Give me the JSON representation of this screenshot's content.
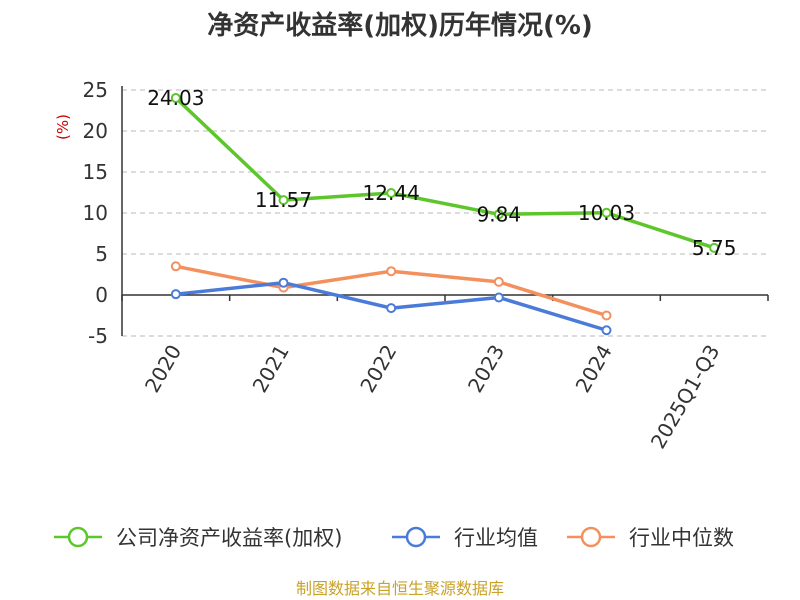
{
  "chart_data": {
    "type": "line",
    "title": "净资产收益率(加权)历年情况(%)",
    "ylabel": "(%)",
    "categories": [
      "2020",
      "2021",
      "2022",
      "2023",
      "2024",
      "2025Q1-Q3"
    ],
    "ylim": [
      -5,
      25
    ],
    "yticks": [
      -5,
      0,
      5,
      10,
      15,
      20,
      25
    ],
    "grid": true,
    "legend_position": "bottom",
    "series": [
      {
        "name": "公司净资产收益率(加权)",
        "color": "#5cc62a",
        "values": [
          24.03,
          11.57,
          12.44,
          9.84,
          10.03,
          5.75
        ],
        "labels": [
          "24.03",
          "11.57",
          "12.44",
          "9.84",
          "10.03",
          "5.75"
        ]
      },
      {
        "name": "行业均值",
        "color": "#4a7bd8",
        "values": [
          0.1,
          1.5,
          -1.6,
          -0.3,
          -4.3,
          null
        ]
      },
      {
        "name": "行业中位数",
        "color": "#f4905e",
        "values": [
          3.5,
          0.9,
          2.9,
          1.6,
          -2.5,
          null
        ]
      }
    ]
  },
  "source": "制图数据来自恒生聚源数据库"
}
